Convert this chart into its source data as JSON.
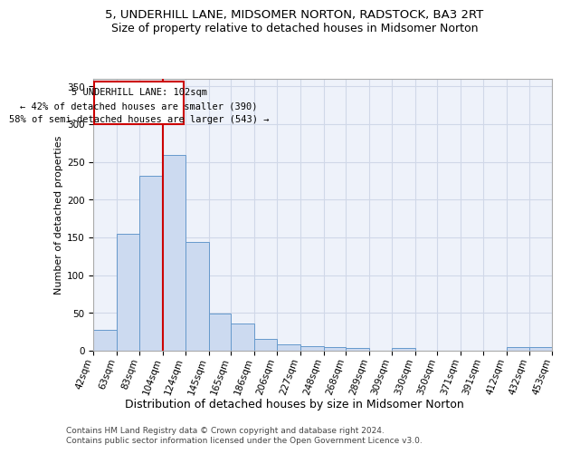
{
  "title1": "5, UNDERHILL LANE, MIDSOMER NORTON, RADSTOCK, BA3 2RT",
  "title2": "Size of property relative to detached houses in Midsomer Norton",
  "xlabel": "Distribution of detached houses by size in Midsomer Norton",
  "ylabel": "Number of detached properties",
  "footer1": "Contains HM Land Registry data © Crown copyright and database right 2024.",
  "footer2": "Contains public sector information licensed under the Open Government Licence v3.0.",
  "annotation_line1": "5 UNDERHILL LANE: 102sqm",
  "annotation_line2": "← 42% of detached houses are smaller (390)",
  "annotation_line3": "58% of semi-detached houses are larger (543) →",
  "bar_color": "#ccdaf0",
  "bar_edge_color": "#6699cc",
  "redline_color": "#cc0000",
  "redline_x": 104,
  "bin_edges": [
    42,
    63,
    83,
    104,
    124,
    145,
    165,
    186,
    206,
    227,
    248,
    268,
    289,
    309,
    330,
    350,
    371,
    391,
    412,
    432,
    453
  ],
  "bar_heights": [
    28,
    155,
    232,
    259,
    144,
    49,
    36,
    16,
    9,
    6,
    5,
    4,
    0,
    4,
    0,
    0,
    0,
    0,
    5,
    5
  ],
  "ylim": [
    0,
    360
  ],
  "yticks": [
    0,
    50,
    100,
    150,
    200,
    250,
    300,
    350
  ],
  "background_color": "#eef2fa",
  "grid_color": "#d0d8e8",
  "title1_fontsize": 9.5,
  "title2_fontsize": 9,
  "ylabel_fontsize": 8,
  "xlabel_fontsize": 9,
  "tick_fontsize": 7.5,
  "footer_fontsize": 6.5
}
